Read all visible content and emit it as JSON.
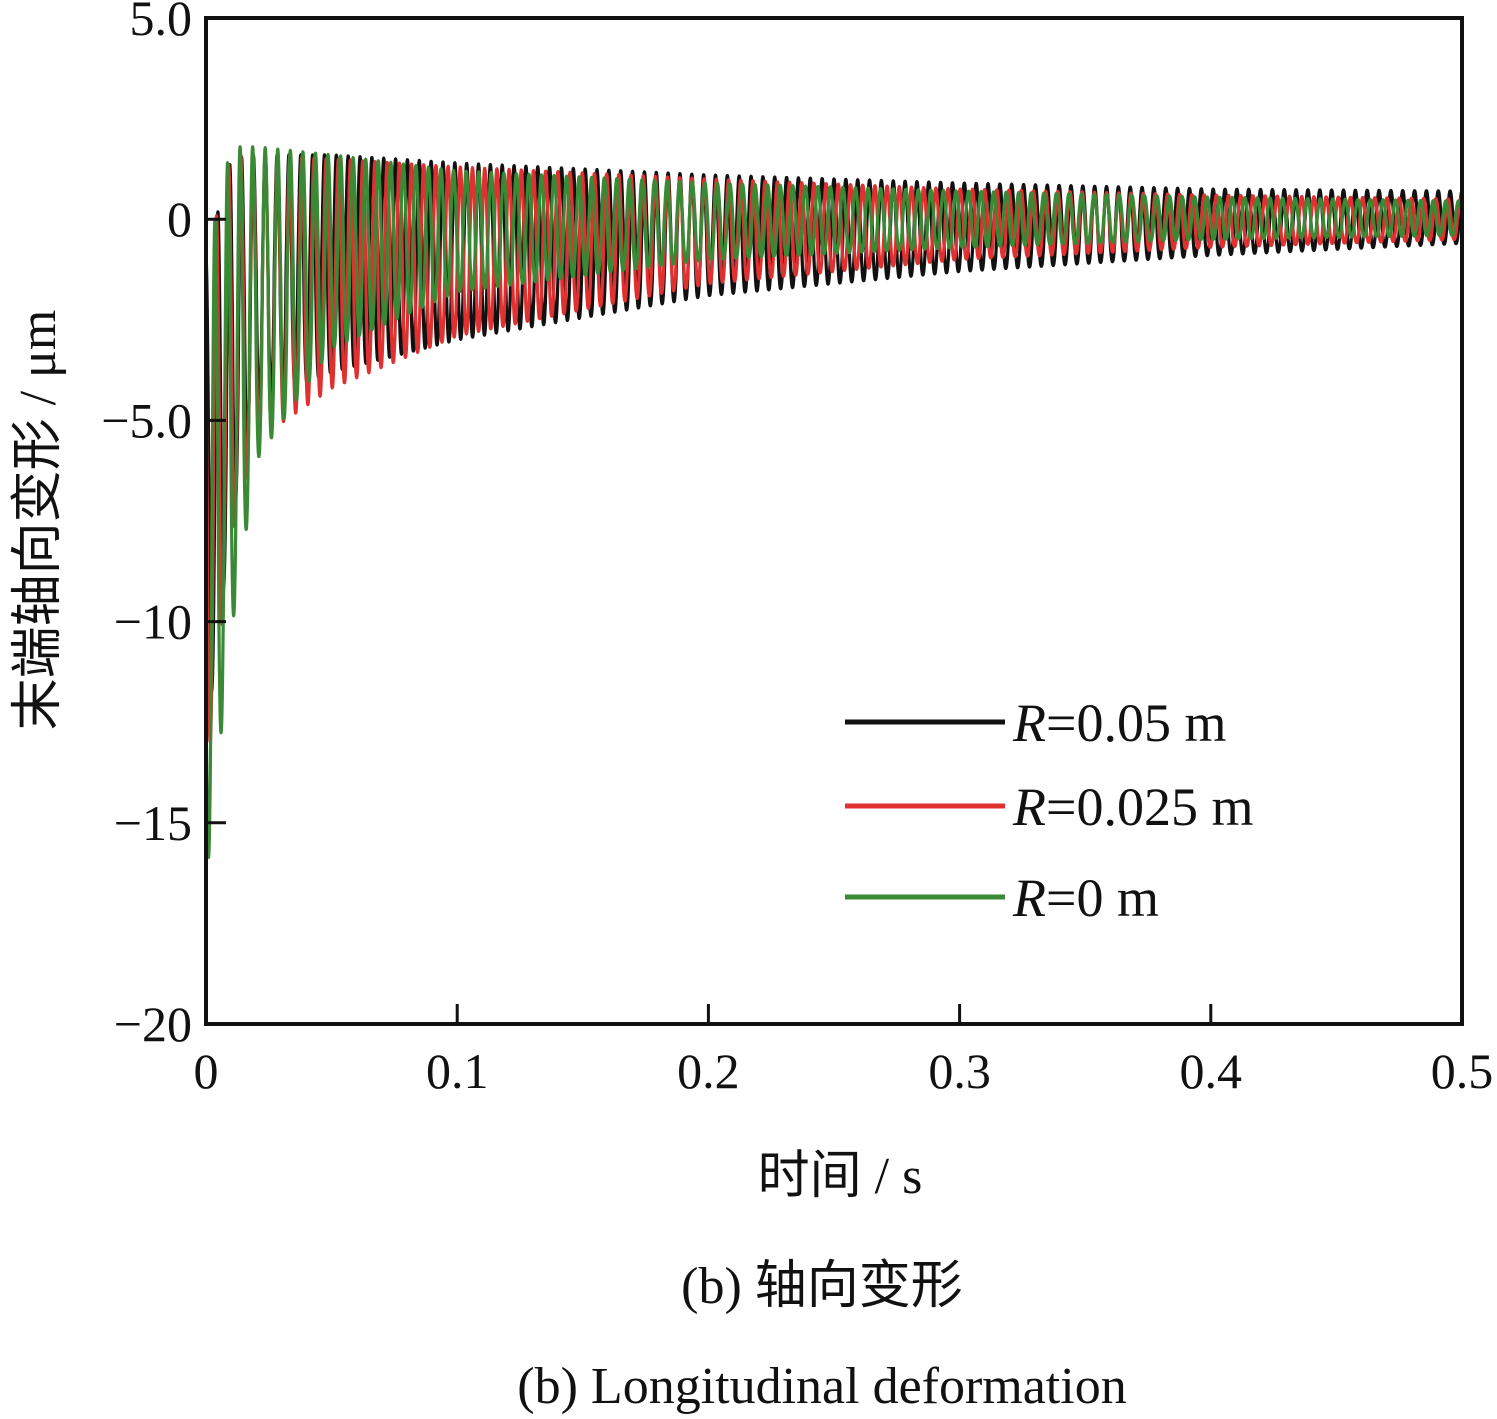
{
  "chart_data": {
    "type": "line",
    "title": "",
    "xlabel": "时间 / s",
    "ylabel": "末端轴向变形 / μm",
    "xlim": [
      0,
      0.5
    ],
    "ylim": [
      -20,
      5
    ],
    "x_ticks": [
      "0",
      "0.1",
      "0.2",
      "0.3",
      "0.4",
      "0.5"
    ],
    "y_ticks": [
      "5.0",
      "0",
      "−5.0",
      "−10",
      "−15",
      "−20"
    ],
    "grid": false,
    "legend_position": "lower-right",
    "series": [
      {
        "name_prefix": "R",
        "name_suffix": "=0.05 m",
        "color": "#111111",
        "frequency_hz": 212,
        "envelope_points": [
          {
            "t": 0.0,
            "upper": -1.0,
            "lower": -13.0
          },
          {
            "t": 0.01,
            "upper": 1.5,
            "lower": -7.5
          },
          {
            "t": 0.02,
            "upper": 1.6,
            "lower": -4.5
          },
          {
            "t": 0.05,
            "upper": 1.6,
            "lower": -3.8
          },
          {
            "t": 0.1,
            "upper": 1.4,
            "lower": -3.0
          },
          {
            "t": 0.2,
            "upper": 1.1,
            "lower": -1.9
          },
          {
            "t": 0.3,
            "upper": 0.9,
            "lower": -1.3
          },
          {
            "t": 0.4,
            "upper": 0.75,
            "lower": -0.9
          },
          {
            "t": 0.5,
            "upper": 0.7,
            "lower": -0.6
          }
        ]
      },
      {
        "name_prefix": "R",
        "name_suffix": "=0.025 m",
        "color": "#e03030",
        "frequency_hz": 206,
        "envelope_points": [
          {
            "t": 0.0,
            "upper": -1.0,
            "lower": -14.0
          },
          {
            "t": 0.01,
            "upper": 1.6,
            "lower": -8.0
          },
          {
            "t": 0.02,
            "upper": 1.6,
            "lower": -5.5
          },
          {
            "t": 0.05,
            "upper": 1.5,
            "lower": -4.2
          },
          {
            "t": 0.1,
            "upper": 1.3,
            "lower": -2.9
          },
          {
            "t": 0.2,
            "upper": 1.0,
            "lower": -1.6
          },
          {
            "t": 0.3,
            "upper": 0.75,
            "lower": -1.0
          },
          {
            "t": 0.4,
            "upper": 0.6,
            "lower": -0.7
          },
          {
            "t": 0.5,
            "upper": 0.5,
            "lower": -0.5
          }
        ]
      },
      {
        "name_prefix": "R",
        "name_suffix": "=0 m",
        "color": "#3a8a35",
        "frequency_hz": 200,
        "envelope_points": [
          {
            "t": 0.0,
            "upper": -1.0,
            "lower": -16.5
          },
          {
            "t": 0.01,
            "upper": 1.8,
            "lower": -10.3
          },
          {
            "t": 0.02,
            "upper": 1.8,
            "lower": -6.0
          },
          {
            "t": 0.05,
            "upper": 1.6,
            "lower": -3.2
          },
          {
            "t": 0.1,
            "upper": 1.2,
            "lower": -1.8
          },
          {
            "t": 0.2,
            "upper": 0.9,
            "lower": -1.0
          },
          {
            "t": 0.3,
            "upper": 0.7,
            "lower": -0.7
          },
          {
            "t": 0.4,
            "upper": 0.55,
            "lower": -0.5
          },
          {
            "t": 0.5,
            "upper": 0.45,
            "lower": -0.4
          }
        ]
      }
    ]
  },
  "captions": {
    "zh": "(b) 轴向变形",
    "en": "(b) Longitudinal deformation"
  }
}
